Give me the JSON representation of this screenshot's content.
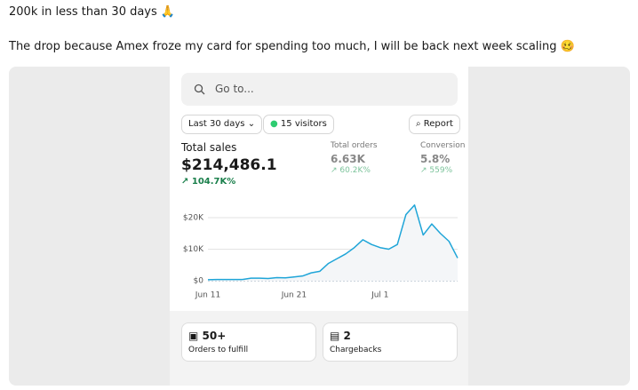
{
  "post": {
    "line1": "200k in less than 30 days 🙏",
    "line2": "The drop because Amex froze my card for spending too much, I will be back next week scaling 🥴"
  },
  "dashboard": {
    "search_placeholder": "Go to...",
    "date_range": "Last 30 days",
    "visitors": "15 visitors",
    "report": "Report",
    "metrics": [
      {
        "label": "Total sales",
        "value": "$214,486.1",
        "change": "104.7K%"
      },
      {
        "label": "Total orders",
        "value": "6.63K",
        "change": "60.2K%"
      },
      {
        "label": "Conversion rate",
        "value": "5.8%",
        "change": "559%"
      }
    ],
    "chart": {
      "type": "line",
      "categories": [
        "Jun 11",
        null,
        null,
        null,
        null,
        null,
        null,
        null,
        null,
        null,
        "Jun 21",
        null,
        null,
        null,
        null,
        null,
        null,
        null,
        null,
        null,
        "Jul 1",
        null,
        null,
        null,
        null,
        null,
        null,
        null,
        null,
        null
      ],
      "values": [
        300,
        400,
        400,
        400,
        400,
        800,
        800,
        700,
        1000,
        900,
        1200,
        1500,
        2500,
        3000,
        5500,
        7000,
        8500,
        10500,
        13000,
        11500,
        10500,
        10000,
        11500,
        21000,
        24000,
        14500,
        18000,
        15000,
        12500,
        7200
      ],
      "color": "#1fa5d8",
      "ylim": [
        0,
        20000
      ],
      "yticks": [
        {
          "value": 0,
          "label": "$0"
        },
        {
          "value": 10000,
          "label": "$10K"
        },
        {
          "value": 20000,
          "label": "$20K"
        }
      ],
      "grid": true
    },
    "cards": [
      {
        "value": "50+",
        "label": "Orders to fulfill"
      },
      {
        "value": "2",
        "label": "Chargebacks"
      }
    ]
  }
}
